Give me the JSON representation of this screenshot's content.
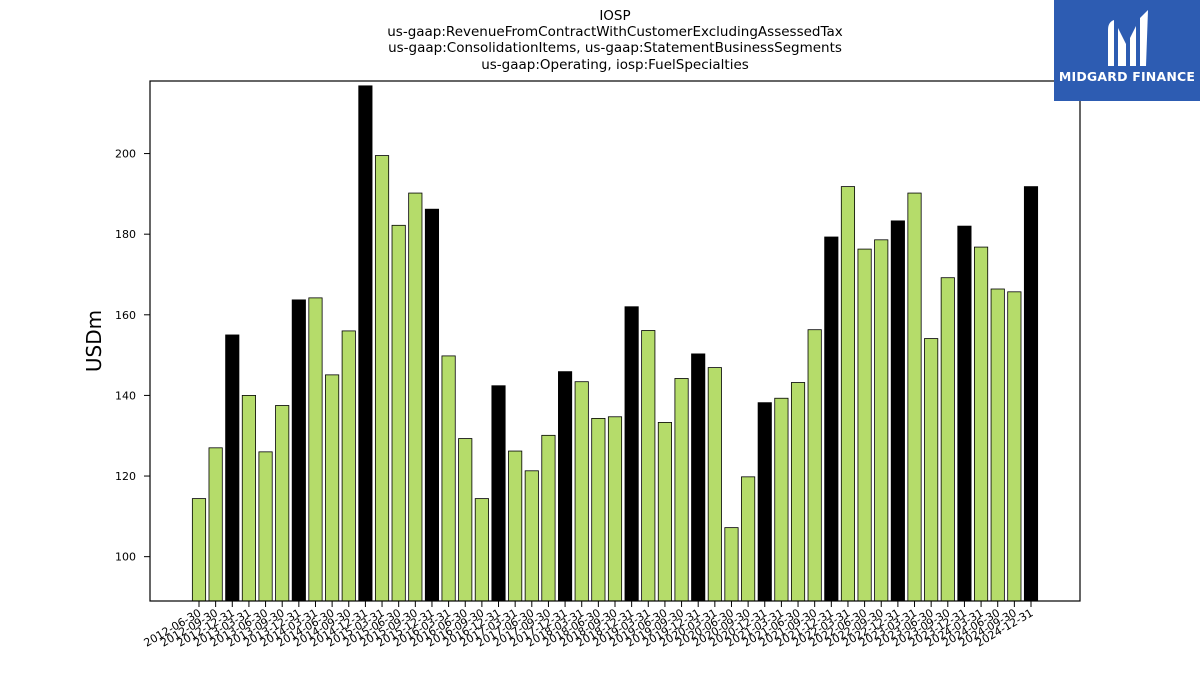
{
  "logo": {
    "text": "MIDGARD FINANCE",
    "icon": "midgard-logo-icon",
    "color": "#2d5cb2"
  },
  "chart_data": {
    "type": "bar",
    "title_lines": [
      "IOSP",
      "us-gaap:RevenueFromContractWithCustomerExcludingAssessedTax",
      "us-gaap:ConsolidationItems, us-gaap:StatementBusinessSegments",
      "us-gaap:Operating, iosp:FuelSpecialties"
    ],
    "xlabel": "",
    "ylabel": "USDm",
    "ylim": [
      89,
      218
    ],
    "yticks": [
      100,
      120,
      140,
      160,
      180,
      200
    ],
    "grid": false,
    "legend": "none",
    "colors": {
      "quarter": "#b5dc6a",
      "year_end": "#000000",
      "edge": "#000000"
    },
    "categories": [
      "2012-06-30",
      "2012-09-30",
      "2012-12-31",
      "2013-03-31",
      "2013-06-30",
      "2013-09-30",
      "2013-12-31",
      "2014-03-31",
      "2014-06-30",
      "2014-09-30",
      "2014-12-31",
      "2015-03-31",
      "2015-06-30",
      "2015-09-30",
      "2015-12-31",
      "2016-03-31",
      "2016-06-30",
      "2016-09-30",
      "2016-12-31",
      "2017-03-31",
      "2017-06-30",
      "2017-09-30",
      "2017-12-31",
      "2018-03-31",
      "2018-06-30",
      "2018-09-30",
      "2018-12-31",
      "2019-03-31",
      "2019-06-30",
      "2019-09-30",
      "2019-12-31",
      "2020-03-31",
      "2020-06-30",
      "2020-09-30",
      "2020-12-31",
      "2021-03-31",
      "2021-06-30",
      "2021-09-30",
      "2021-12-31",
      "2022-03-31",
      "2022-06-30",
      "2022-09-30",
      "2022-12-31",
      "2023-03-31",
      "2023-06-30",
      "2023-09-30",
      "2023-12-31",
      "2024-03-31",
      "2024-06-30",
      "2024-09-30",
      "2024-12-31"
    ],
    "values": [
      114.4,
      127.0,
      155.0,
      140.0,
      126.0,
      137.5,
      163.7,
      164.2,
      145.1,
      156.0,
      216.8,
      199.5,
      182.2,
      190.2,
      186.2,
      149.8,
      129.3,
      114.4,
      142.4,
      126.2,
      121.3,
      130.1,
      145.9,
      143.4,
      134.3,
      134.7,
      162.0,
      156.1,
      133.3,
      144.2,
      150.3,
      146.9,
      107.2,
      119.8,
      138.2,
      139.3,
      143.2,
      156.3,
      179.3,
      191.8,
      176.3,
      178.6,
      183.3,
      190.2,
      154.1,
      169.2,
      182.0,
      176.8,
      166.4,
      165.7,
      191.8
    ],
    "highlight": [
      false,
      false,
      true,
      false,
      false,
      false,
      true,
      false,
      false,
      false,
      true,
      false,
      false,
      false,
      true,
      false,
      false,
      false,
      true,
      false,
      false,
      false,
      true,
      false,
      false,
      false,
      true,
      false,
      false,
      false,
      true,
      false,
      false,
      false,
      true,
      false,
      false,
      false,
      true,
      false,
      false,
      false,
      true,
      false,
      false,
      false,
      true,
      false,
      false,
      false,
      true
    ]
  }
}
